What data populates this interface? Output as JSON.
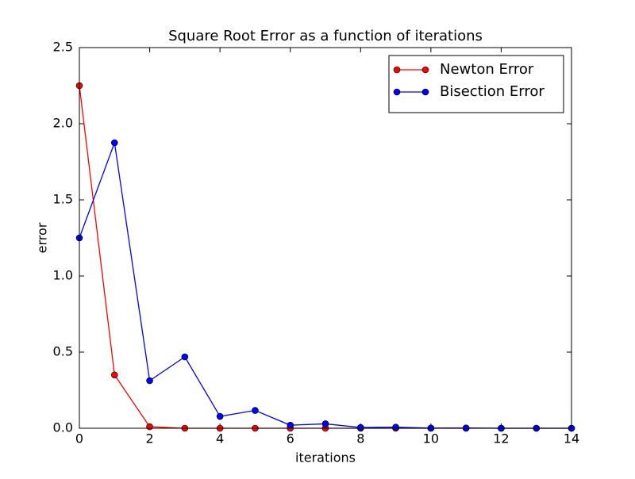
{
  "chart_data": {
    "type": "line",
    "title": "Square Root Error as a function of iterations",
    "x_label": "iterations",
    "y_label": "error",
    "x": [
      0,
      1,
      2,
      3,
      4,
      5,
      6,
      7,
      8,
      9,
      10,
      11,
      12,
      13,
      14
    ],
    "series": [
      {
        "name": "Newton Error",
        "color": "#ff0000",
        "values": [
          2.25,
          0.35,
          0.01,
          0.0,
          0.0,
          0.0,
          0.0,
          0.0,
          0.0,
          0.0,
          0.0,
          0.0,
          0.0,
          0.0,
          0.0
        ]
      },
      {
        "name": "Bisection Error",
        "color": "#0000ff",
        "values": [
          1.25,
          1.875,
          0.3125,
          0.46875,
          0.078,
          0.117,
          0.02,
          0.029,
          0.005,
          0.007,
          0.001,
          0.002,
          0.0,
          0.0,
          0.0
        ]
      }
    ],
    "xlim": [
      0,
      14
    ],
    "xticks": [
      0,
      2,
      4,
      6,
      8,
      10,
      12,
      14
    ],
    "ylim": [
      0,
      2.5
    ],
    "yticks": [
      {
        "value": 0,
        "label": "0.0"
      },
      {
        "value": 0.5,
        "label": "0.5"
      },
      {
        "value": 1,
        "label": "1.0"
      },
      {
        "value": 1.5,
        "label": "1.5"
      },
      {
        "value": 2,
        "label": "2.0"
      },
      {
        "value": 2.5,
        "label": "2.5"
      }
    ],
    "legend": "upper right",
    "grid": false
  }
}
